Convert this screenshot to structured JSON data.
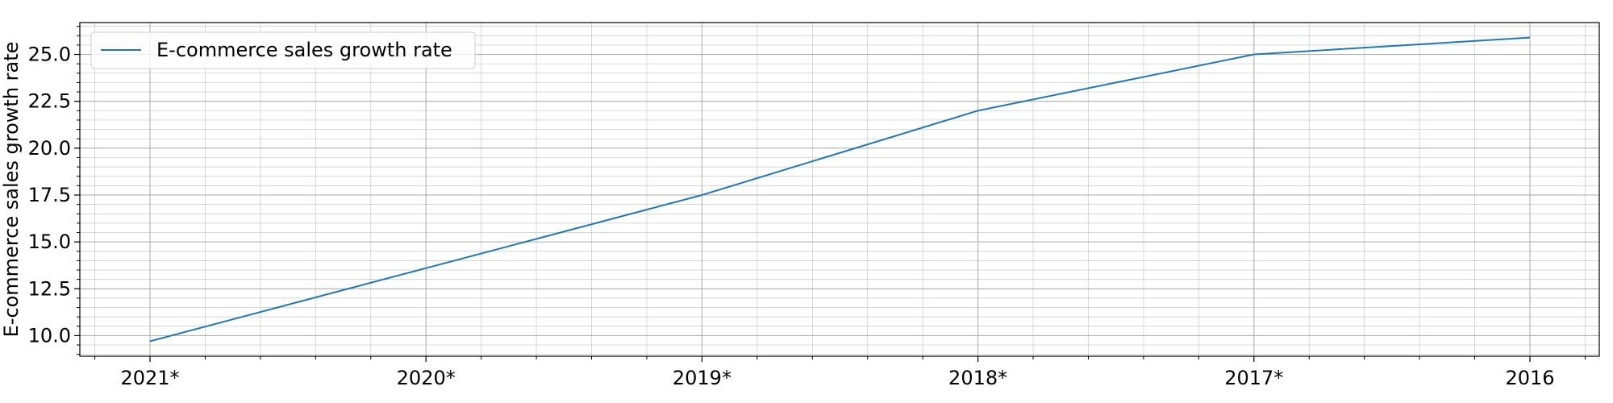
{
  "chart_data": {
    "type": "line",
    "categories": [
      "2021*",
      "2020*",
      "2019*",
      "2018*",
      "2017*",
      "2016"
    ],
    "series": [
      {
        "name": "E-commerce sales growth rate",
        "values": [
          9.7,
          13.6,
          17.5,
          22.0,
          25.0,
          25.9
        ]
      }
    ],
    "xlabel": "",
    "ylabel": "E-commerce sales growth rate",
    "ylim": [
      8.9,
      26.7
    ],
    "yticks": [
      "10.0",
      "12.5",
      "15.0",
      "17.5",
      "20.0",
      "22.5",
      "25.0"
    ],
    "grid": true,
    "legend_position": "top-left",
    "colors": {
      "series": "#1f77b4",
      "grid": "#b0b0b0",
      "axis": "#000000"
    }
  }
}
